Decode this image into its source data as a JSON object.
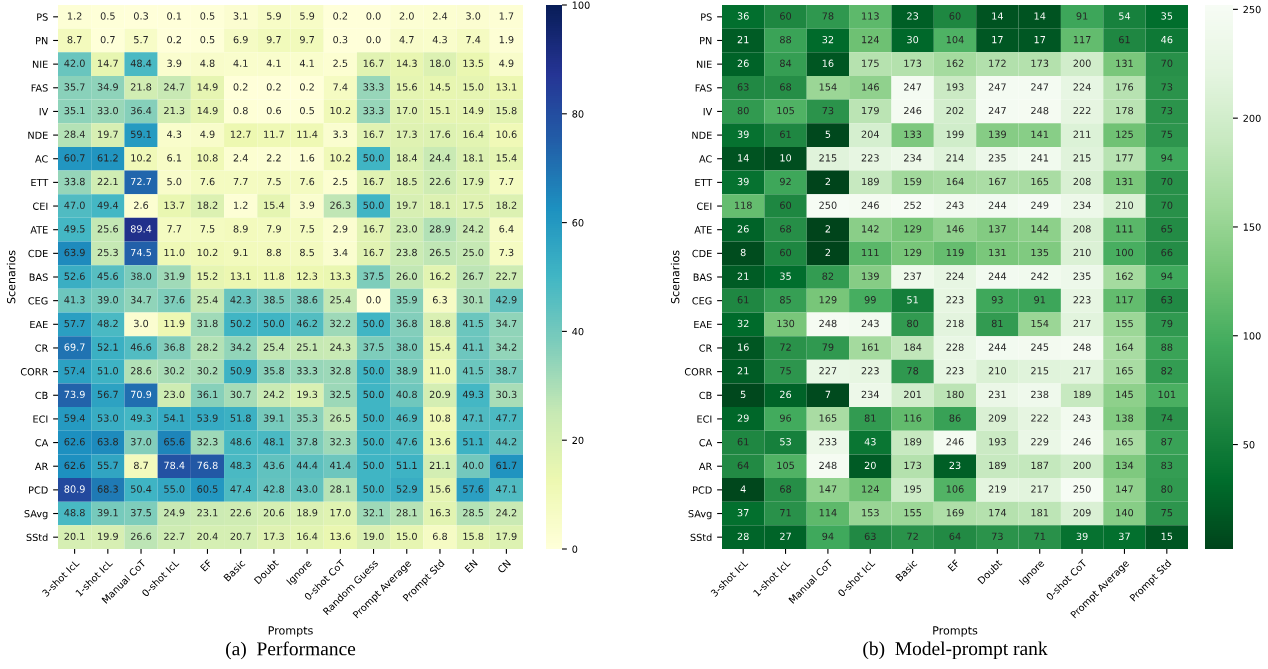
{
  "chart_data": [
    {
      "type": "heatmap",
      "title": "(a)  Performance",
      "xlabel": "Prompts",
      "ylabel": "Scenarios",
      "cell_labels": [
        [
          "1.2",
          "0.5",
          "0.3",
          "0.1",
          "0.5",
          "3.1",
          "5.9",
          "5.9",
          "0.2",
          "0.0",
          "2.0",
          "2.4",
          "3.0",
          "1.7"
        ],
        [
          "8.7",
          "0.7",
          "5.7",
          "0.2",
          "0.5",
          "6.9",
          "9.7",
          "9.7",
          "0.3",
          "0.0",
          "4.7",
          "4.3",
          "7.4",
          "1.9"
        ],
        [
          "42.0",
          "14.7",
          "48.4",
          "3.9",
          "4.8",
          "4.1",
          "4.1",
          "4.1",
          "2.5",
          "16.7",
          "14.3",
          "18.0",
          "13.5",
          "4.9"
        ],
        [
          "35.7",
          "34.9",
          "21.8",
          "24.7",
          "14.9",
          "0.2",
          "0.2",
          "0.2",
          "7.4",
          "33.3",
          "15.6",
          "14.5",
          "15.0",
          "13.1"
        ],
        [
          "35.1",
          "33.0",
          "36.4",
          "21.3",
          "14.9",
          "0.8",
          "0.6",
          "0.5",
          "10.2",
          "33.3",
          "17.0",
          "15.1",
          "14.9",
          "15.8"
        ],
        [
          "28.4",
          "19.7",
          "59.1",
          "4.3",
          "4.9",
          "12.7",
          "11.7",
          "11.4",
          "3.3",
          "16.7",
          "17.3",
          "17.6",
          "16.4",
          "10.6"
        ],
        [
          "60.7",
          "61.2",
          "10.2",
          "6.1",
          "10.8",
          "2.4",
          "2.2",
          "1.6",
          "10.2",
          "50.0",
          "18.4",
          "24.4",
          "18.1",
          "15.4"
        ],
        [
          "33.8",
          "22.1",
          "72.7",
          "5.0",
          "7.6",
          "7.7",
          "7.5",
          "7.6",
          "2.5",
          "16.7",
          "18.5",
          "22.6",
          "17.9",
          "7.7"
        ],
        [
          "47.0",
          "49.4",
          "2.6",
          "13.7",
          "18.2",
          "1.2",
          "15.4",
          "3.9",
          "26.3",
          "50.0",
          "19.7",
          "18.1",
          "17.5",
          "18.2"
        ],
        [
          "49.5",
          "25.6",
          "89.4",
          "7.7",
          "7.5",
          "8.9",
          "7.9",
          "7.5",
          "2.9",
          "16.7",
          "23.0",
          "28.9",
          "24.2",
          "6.4"
        ],
        [
          "63.9",
          "25.3",
          "74.5",
          "11.0",
          "10.2",
          "9.1",
          "8.8",
          "8.5",
          "3.4",
          "16.7",
          "23.8",
          "26.5",
          "25.0",
          "7.3"
        ],
        [
          "52.6",
          "45.6",
          "38.0",
          "31.9",
          "15.2",
          "13.1",
          "11.8",
          "12.3",
          "13.3",
          "37.5",
          "26.0",
          "16.2",
          "26.7",
          "22.7"
        ],
        [
          "41.3",
          "39.0",
          "34.7",
          "37.6",
          "25.4",
          "42.3",
          "38.5",
          "38.6",
          "25.4",
          "0.0",
          "35.9",
          "6.3",
          "30.1",
          "42.9"
        ],
        [
          "57.7",
          "48.2",
          "3.0",
          "11.9",
          "31.8",
          "50.2",
          "50.0",
          "46.2",
          "32.2",
          "50.0",
          "36.8",
          "18.8",
          "41.5",
          "34.7"
        ],
        [
          "69.7",
          "52.1",
          "46.6",
          "36.8",
          "28.2",
          "34.2",
          "25.4",
          "25.1",
          "24.3",
          "37.5",
          "38.0",
          "15.4",
          "41.1",
          "34.2"
        ],
        [
          "57.4",
          "51.0",
          "28.6",
          "30.2",
          "30.2",
          "50.9",
          "35.8",
          "33.3",
          "32.8",
          "50.0",
          "38.9",
          "11.0",
          "41.5",
          "38.7"
        ],
        [
          "73.9",
          "56.7",
          "70.9",
          "23.0",
          "36.1",
          "30.7",
          "24.2",
          "19.3",
          "32.5",
          "50.0",
          "40.8",
          "20.9",
          "49.3",
          "30.3"
        ],
        [
          "59.4",
          "53.0",
          "49.3",
          "54.1",
          "53.9",
          "51.8",
          "39.1",
          "35.3",
          "26.5",
          "50.0",
          "46.9",
          "10.8",
          "47.1",
          "47.7"
        ],
        [
          "62.6",
          "63.8",
          "37.0",
          "65.6",
          "32.3",
          "48.6",
          "48.1",
          "37.8",
          "32.3",
          "50.0",
          "47.6",
          "13.6",
          "51.1",
          "44.2"
        ],
        [
          "62.6",
          "55.7",
          "8.7",
          "78.4",
          "76.8",
          "48.3",
          "43.6",
          "44.4",
          "41.4",
          "50.0",
          "51.1",
          "21.1",
          "40.0",
          "61.7"
        ],
        [
          "80.9",
          "68.3",
          "50.4",
          "55.0",
          "60.5",
          "47.4",
          "42.8",
          "43.0",
          "28.1",
          "50.0",
          "52.9",
          "15.6",
          "57.6",
          "47.1"
        ],
        [
          "48.8",
          "39.1",
          "37.5",
          "24.9",
          "23.1",
          "22.6",
          "20.6",
          "18.9",
          "17.0",
          "32.1",
          "28.1",
          "16.3",
          "28.5",
          "24.2"
        ],
        [
          "20.1",
          "19.9",
          "26.6",
          "22.7",
          "20.4",
          "20.7",
          "17.3",
          "16.4",
          "13.6",
          "19.0",
          "15.0",
          "6.8",
          "15.8",
          "17.9"
        ]
      ],
      "clim": [
        0,
        100
      ],
      "cticks": [
        0,
        20,
        40,
        60,
        80,
        100
      ],
      "categories": [
        "3-shot IcL",
        "1-shot IcL",
        "Manual CoT",
        "0-shot IcL",
        "EF",
        "Basic",
        "Doubt",
        "Ignore",
        "0-shot CoT",
        "Random Guess",
        "Prompt Average",
        "Prompt Std",
        "EN",
        "CN"
      ],
      "y_categories": [
        "PS",
        "PN",
        "NIE",
        "FAS",
        "IV",
        "NDE",
        "AC",
        "ETT",
        "CEI",
        "ATE",
        "CDE",
        "BAS",
        "CEG",
        "EAE",
        "CR",
        "CORR",
        "CB",
        "ECI",
        "CA",
        "AR",
        "PCD",
        "SAvg",
        "SStd"
      ],
      "cells": [
        [
          1.2,
          0.5,
          0.3,
          0.1,
          0.5,
          3.1,
          5.9,
          5.9,
          0.2,
          0.0,
          2.0,
          2.4,
          3.0,
          1.7
        ],
        [
          8.7,
          0.7,
          5.7,
          0.2,
          0.5,
          6.9,
          9.7,
          9.7,
          0.3,
          0.0,
          4.7,
          4.3,
          7.4,
          1.9
        ],
        [
          42.0,
          14.7,
          48.4,
          3.9,
          4.8,
          4.1,
          4.1,
          4.1,
          2.5,
          16.7,
          14.3,
          18.0,
          13.5,
          4.9
        ],
        [
          35.7,
          34.9,
          21.8,
          24.7,
          14.9,
          0.2,
          0.2,
          0.2,
          7.4,
          33.3,
          15.6,
          14.5,
          15.0,
          13.1
        ],
        [
          35.1,
          33.0,
          36.4,
          21.3,
          14.9,
          0.8,
          0.6,
          0.5,
          10.2,
          33.3,
          17.0,
          15.1,
          14.9,
          15.8
        ],
        [
          28.4,
          19.7,
          59.1,
          4.3,
          4.9,
          12.7,
          11.7,
          11.4,
          3.3,
          16.7,
          17.3,
          17.6,
          16.4,
          10.6
        ],
        [
          60.7,
          61.2,
          10.2,
          6.1,
          10.8,
          2.4,
          2.2,
          1.6,
          10.2,
          50.0,
          18.4,
          24.4,
          18.1,
          15.4
        ],
        [
          33.8,
          22.1,
          72.7,
          5.0,
          7.6,
          7.7,
          7.5,
          7.6,
          2.5,
          16.7,
          18.5,
          22.6,
          17.9,
          7.7
        ],
        [
          47.0,
          49.4,
          2.6,
          13.7,
          18.2,
          1.2,
          15.4,
          3.9,
          26.3,
          50.0,
          19.7,
          18.1,
          17.5,
          18.2
        ],
        [
          49.5,
          25.6,
          89.4,
          7.7,
          7.5,
          8.9,
          7.9,
          7.5,
          2.9,
          16.7,
          23.0,
          28.9,
          24.2,
          6.4
        ],
        [
          63.9,
          25.3,
          74.5,
          11.0,
          10.2,
          9.1,
          8.8,
          8.5,
          3.4,
          16.7,
          23.8,
          26.5,
          25.0,
          7.3
        ],
        [
          52.6,
          45.6,
          38.0,
          31.9,
          15.2,
          13.1,
          11.8,
          12.3,
          13.3,
          37.5,
          26.0,
          16.2,
          26.7,
          22.7
        ],
        [
          41.3,
          39.0,
          34.7,
          37.6,
          25.4,
          42.3,
          38.5,
          38.6,
          25.4,
          0.0,
          35.9,
          6.3,
          30.1,
          42.9
        ],
        [
          57.7,
          48.2,
          3.0,
          11.9,
          31.8,
          50.2,
          50.0,
          46.2,
          32.2,
          50.0,
          36.8,
          18.8,
          41.5,
          34.7
        ],
        [
          69.7,
          52.1,
          46.6,
          36.8,
          28.2,
          34.2,
          25.4,
          25.1,
          24.3,
          37.5,
          38.0,
          15.4,
          41.1,
          34.2
        ],
        [
          57.4,
          51.0,
          28.6,
          30.2,
          30.2,
          50.9,
          35.8,
          33.3,
          32.8,
          50.0,
          38.9,
          11.0,
          41.5,
          38.7
        ],
        [
          73.9,
          56.7,
          70.9,
          23.0,
          36.1,
          30.7,
          24.2,
          19.3,
          32.5,
          50.0,
          40.8,
          20.9,
          49.3,
          30.3
        ],
        [
          59.4,
          53.0,
          49.3,
          54.1,
          53.9,
          51.8,
          39.1,
          35.3,
          26.5,
          50.0,
          46.9,
          10.8,
          47.1,
          47.7
        ],
        [
          62.6,
          63.8,
          37.0,
          65.6,
          32.3,
          48.6,
          48.1,
          37.8,
          32.3,
          50.0,
          47.6,
          13.6,
          51.1,
          44.2
        ],
        [
          62.6,
          55.7,
          8.7,
          78.4,
          76.8,
          48.3,
          43.6,
          44.4,
          41.4,
          50.0,
          51.1,
          21.1,
          40.0,
          61.7
        ],
        [
          80.9,
          68.3,
          50.4,
          55.0,
          60.5,
          47.4,
          42.8,
          43.0,
          28.1,
          50.0,
          52.9,
          15.6,
          57.6,
          47.1
        ],
        [
          48.8,
          39.1,
          37.5,
          24.9,
          23.1,
          22.6,
          20.6,
          18.9,
          17.0,
          32.1,
          28.1,
          16.3,
          28.5,
          24.2
        ],
        [
          20.1,
          19.9,
          26.6,
          22.7,
          20.4,
          20.7,
          17.3,
          16.4,
          13.6,
          19.0,
          15.0,
          6.8,
          15.8,
          17.9
        ]
      ],
      "data_labels": true
    },
    {
      "type": "heatmap",
      "title": "(b)  Model-prompt rank",
      "xlabel": "Prompts",
      "ylabel": "Scenarios",
      "clim": [
        2,
        252
      ],
      "cticks": [
        50,
        100,
        150,
        200,
        250
      ],
      "categories": [
        "3-shot IcL",
        "1-shot IcL",
        "Manual CoT",
        "0-shot IcL",
        "Basic",
        "EF",
        "Doubt",
        "Ignore",
        "0-shot CoT",
        "Prompt Average",
        "Prompt Std"
      ],
      "y_categories": [
        "PS",
        "PN",
        "NIE",
        "FAS",
        "IV",
        "NDE",
        "AC",
        "ETT",
        "CEI",
        "ATE",
        "CDE",
        "BAS",
        "CEG",
        "EAE",
        "CR",
        "CORR",
        "CB",
        "ECI",
        "CA",
        "AR",
        "PCD",
        "SAvg",
        "SStd"
      ],
      "cells": [
        [
          36,
          60,
          78,
          113,
          23,
          60,
          14,
          14,
          91,
          54,
          35
        ],
        [
          21,
          88,
          32,
          124,
          30,
          104,
          17,
          17,
          117,
          61,
          46
        ],
        [
          26,
          84,
          16,
          175,
          173,
          162,
          172,
          173,
          200,
          131,
          70
        ],
        [
          63,
          68,
          154,
          146,
          247,
          193,
          247,
          247,
          224,
          176,
          73
        ],
        [
          80,
          105,
          73,
          179,
          246,
          202,
          247,
          248,
          222,
          178,
          73
        ],
        [
          39,
          61,
          5,
          204,
          133,
          199,
          139,
          141,
          211,
          125,
          75
        ],
        [
          14,
          10,
          215,
          223,
          234,
          214,
          235,
          241,
          215,
          177,
          94
        ],
        [
          39,
          92,
          2,
          189,
          159,
          164,
          167,
          165,
          208,
          131,
          70
        ],
        [
          118,
          60,
          250,
          246,
          252,
          243,
          244,
          249,
          234,
          210,
          70
        ],
        [
          26,
          68,
          2,
          142,
          129,
          146,
          137,
          144,
          208,
          111,
          65
        ],
        [
          8,
          60,
          2,
          111,
          129,
          119,
          131,
          135,
          210,
          100,
          66
        ],
        [
          21,
          35,
          82,
          139,
          237,
          224,
          244,
          242,
          235,
          162,
          94
        ],
        [
          61,
          85,
          129,
          99,
          51,
          223,
          93,
          91,
          223,
          117,
          63
        ],
        [
          32,
          130,
          248,
          243,
          80,
          218,
          81,
          154,
          217,
          155,
          79
        ],
        [
          16,
          72,
          79,
          161,
          184,
          228,
          244,
          245,
          248,
          164,
          88
        ],
        [
          21,
          75,
          227,
          223,
          78,
          223,
          210,
          215,
          217,
          165,
          82
        ],
        [
          5,
          26,
          7,
          234,
          201,
          180,
          231,
          238,
          189,
          145,
          101
        ],
        [
          29,
          96,
          165,
          81,
          116,
          86,
          209,
          222,
          243,
          138,
          74
        ],
        [
          61,
          53,
          233,
          43,
          189,
          246,
          193,
          229,
          246,
          165,
          87
        ],
        [
          64,
          105,
          248,
          20,
          173,
          23,
          189,
          187,
          200,
          134,
          83
        ],
        [
          4,
          68,
          147,
          124,
          195,
          106,
          219,
          217,
          250,
          147,
          80
        ],
        [
          37,
          71,
          114,
          153,
          155,
          169,
          174,
          181,
          209,
          140,
          75
        ],
        [
          28,
          27,
          94,
          63,
          72,
          64,
          73,
          71,
          39,
          37,
          15
        ]
      ],
      "data_labels": true
    }
  ]
}
